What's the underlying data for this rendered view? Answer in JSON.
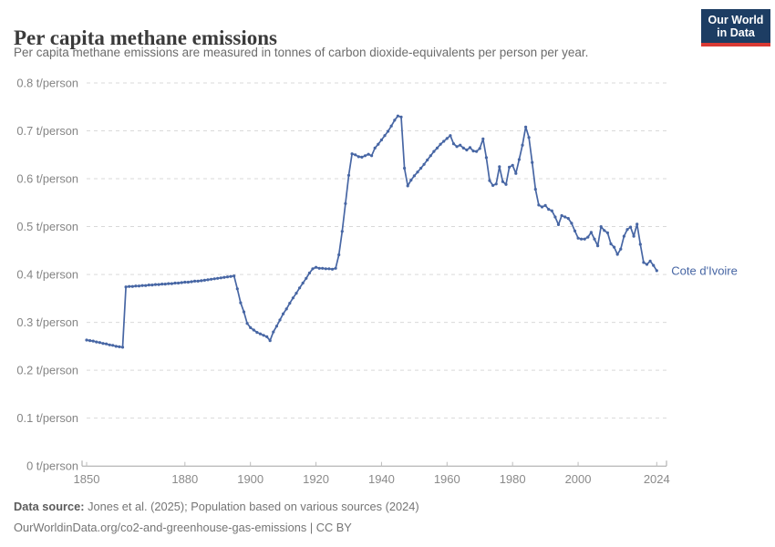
{
  "header": {
    "title": "Per capita methane emissions",
    "subtitle": "Per capita methane emissions are measured in tonnes of carbon dioxide-equivalents per person per year.",
    "logo": {
      "line1": "Our World",
      "line2": "in Data",
      "bg_color": "#1d3d63",
      "accent_color": "#d93a34"
    }
  },
  "chart_data": {
    "type": "line",
    "title": "Per capita methane emissions",
    "xlabel": "",
    "ylabel": "t/person",
    "xlim": [
      1850,
      2024
    ],
    "ylim": [
      0,
      0.8
    ],
    "grid": "horizontal-dashed",
    "legend_position": "end-of-line-label",
    "x_ticks": [
      1850,
      1880,
      1900,
      1920,
      1940,
      1960,
      1980,
      2000,
      2024
    ],
    "y_ticks": [
      0,
      0.1,
      0.2,
      0.3,
      0.4,
      0.5,
      0.6,
      0.7,
      0.8
    ],
    "y_tick_labels": [
      "0 t/person",
      "0.1 t/person",
      "0.2 t/person",
      "0.3 t/person",
      "0.4 t/person",
      "0.5 t/person",
      "0.6 t/person",
      "0.7 t/person",
      "0.8 t/person"
    ],
    "series": [
      {
        "name": "Cote d'Ivoire",
        "color": "#4766a4",
        "x_start": 1850,
        "x_step": 1,
        "x_end": 2024,
        "values": [
          0.263,
          0.262,
          0.261,
          0.259,
          0.258,
          0.256,
          0.255,
          0.253,
          0.252,
          0.25,
          0.249,
          0.248,
          0.374,
          0.375,
          0.375,
          0.376,
          0.376,
          0.377,
          0.377,
          0.378,
          0.378,
          0.379,
          0.379,
          0.38,
          0.38,
          0.381,
          0.381,
          0.382,
          0.382,
          0.383,
          0.384,
          0.384,
          0.385,
          0.386,
          0.386,
          0.387,
          0.388,
          0.389,
          0.39,
          0.391,
          0.392,
          0.393,
          0.394,
          0.395,
          0.396,
          0.397,
          0.37,
          0.341,
          0.322,
          0.298,
          0.289,
          0.284,
          0.279,
          0.276,
          0.273,
          0.27,
          0.262,
          0.28,
          0.292,
          0.305,
          0.318,
          0.328,
          0.34,
          0.351,
          0.361,
          0.372,
          0.382,
          0.392,
          0.403,
          0.412,
          0.415,
          0.413,
          0.413,
          0.412,
          0.412,
          0.411,
          0.413,
          0.441,
          0.49,
          0.548,
          0.607,
          0.652,
          0.65,
          0.646,
          0.645,
          0.648,
          0.651,
          0.648,
          0.664,
          0.672,
          0.681,
          0.69,
          0.699,
          0.71,
          0.722,
          0.731,
          0.729,
          0.622,
          0.585,
          0.597,
          0.606,
          0.614,
          0.622,
          0.63,
          0.639,
          0.648,
          0.657,
          0.664,
          0.672,
          0.678,
          0.684,
          0.69,
          0.673,
          0.667,
          0.67,
          0.664,
          0.66,
          0.665,
          0.658,
          0.657,
          0.663,
          0.683,
          0.644,
          0.596,
          0.586,
          0.589,
          0.625,
          0.594,
          0.588,
          0.624,
          0.628,
          0.611,
          0.64,
          0.67,
          0.708,
          0.686,
          0.634,
          0.578,
          0.545,
          0.541,
          0.544,
          0.536,
          0.533,
          0.52,
          0.504,
          0.523,
          0.52,
          0.517,
          0.507,
          0.491,
          0.476,
          0.474,
          0.474,
          0.478,
          0.488,
          0.474,
          0.46,
          0.5,
          0.492,
          0.487,
          0.464,
          0.457,
          0.442,
          0.453,
          0.48,
          0.494,
          0.499,
          0.48,
          0.505,
          0.463,
          0.425,
          0.421,
          0.428,
          0.419,
          0.408
        ]
      }
    ]
  },
  "footer": {
    "source_label": "Data source:",
    "source_text": " Jones et al. (2025); Population based on various sources (2024)",
    "link_line": "OurWorldinData.org/co2-and-greenhouse-gas-emissions | CC BY"
  }
}
